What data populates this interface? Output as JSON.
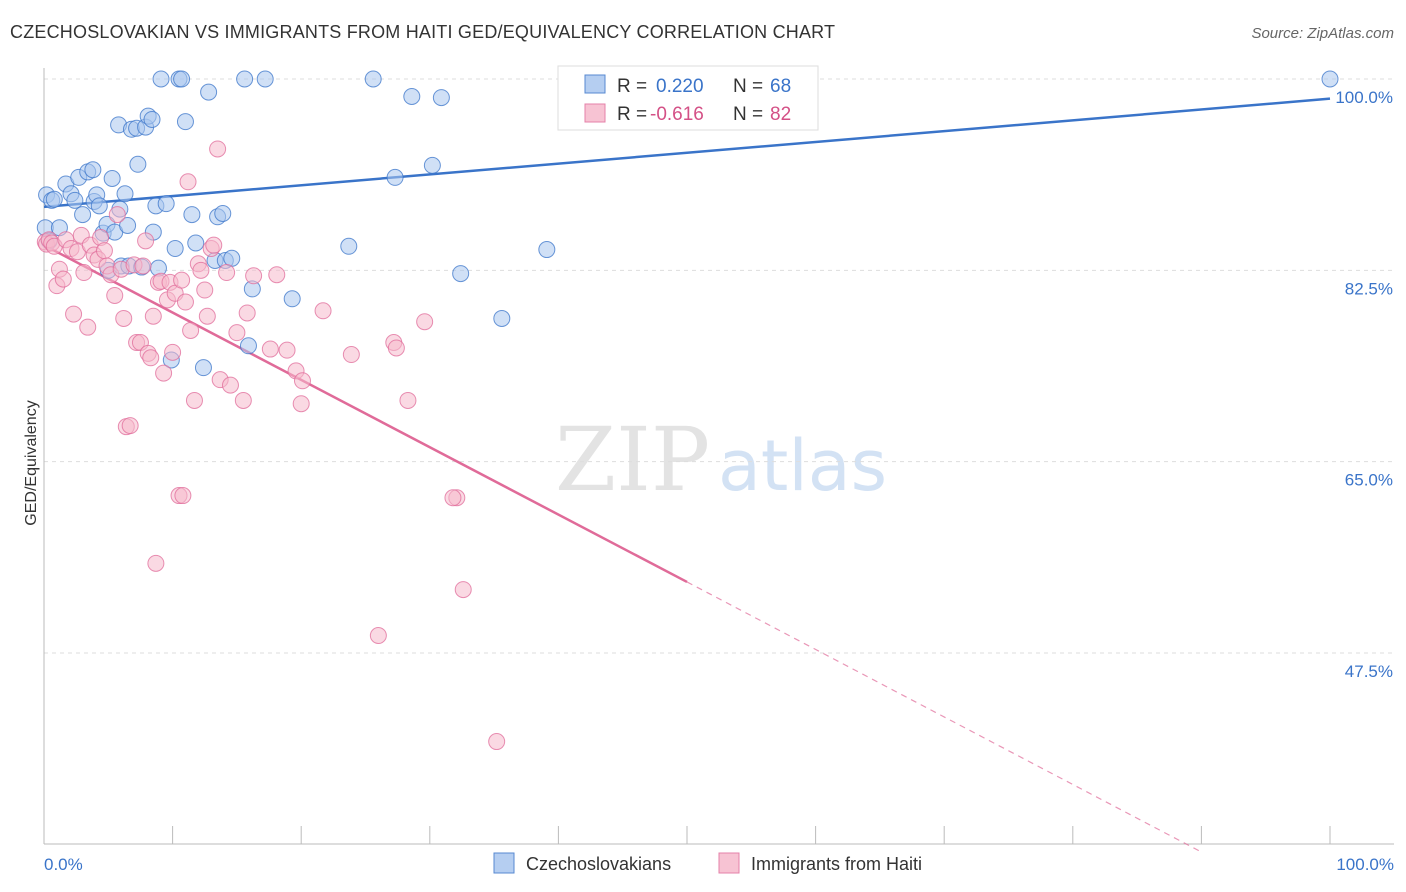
{
  "header": {
    "title": "CZECHOSLOVAKIAN VS IMMIGRANTS FROM HAITI GED/EQUIVALENCY CORRELATION CHART",
    "source": "Source: ZipAtlas.com"
  },
  "watermark": {
    "zip": "ZIP",
    "atlas": "atlas"
  },
  "legend": {
    "r_label": "R =",
    "n_label": "N =",
    "rows": [
      {
        "r": "0.220",
        "n": "68"
      },
      {
        "r": "-0.616",
        "n": "82"
      }
    ]
  },
  "bottom_legend": [
    "Czechoslovakians",
    "Immigrants from Haiti"
  ],
  "colors": {
    "blue": "#3a74c9",
    "blue_fill": "#a9c6ef",
    "pink": "#e06b99",
    "pink_fill": "#f6b9cc"
  },
  "chart_data": {
    "type": "scatter",
    "title": "CZECHOSLOVAKIAN VS IMMIGRANTS FROM HAITI GED/EQUIVALENCY CORRELATION CHART",
    "xlabel": "",
    "ylabel": "GED/Equivalency",
    "xlim": [
      0,
      100
    ],
    "ylim": [
      30,
      101
    ],
    "x_ticks": [
      "0.0%",
      "100.0%"
    ],
    "y_ticks": [
      {
        "value": 100,
        "label": "100.0%"
      },
      {
        "value": 82.5,
        "label": "82.5%"
      },
      {
        "value": 65,
        "label": "65.0%"
      },
      {
        "value": 47.5,
        "label": "47.5%"
      }
    ],
    "grid": true,
    "legend_position": "top-center",
    "series": [
      {
        "name": "Czechoslovakians",
        "r": 0.22,
        "n": 68,
        "trend": {
          "x0": 0,
          "y0": 88.3,
          "x1": 100,
          "y1": 98.2
        },
        "points": [
          [
            0.1,
            86.4
          ],
          [
            0.2,
            89.4
          ],
          [
            0.4,
            85.2
          ],
          [
            0.6,
            88.9
          ],
          [
            0.8,
            89.0
          ],
          [
            1.2,
            86.4
          ],
          [
            1.7,
            90.4
          ],
          [
            2.1,
            89.5
          ],
          [
            2.4,
            88.9
          ],
          [
            2.7,
            91.0
          ],
          [
            3.0,
            87.6
          ],
          [
            3.4,
            91.5
          ],
          [
            3.8,
            91.7
          ],
          [
            3.9,
            88.8
          ],
          [
            4.1,
            89.4
          ],
          [
            4.3,
            88.4
          ],
          [
            4.6,
            85.9
          ],
          [
            4.9,
            86.7
          ],
          [
            5.0,
            82.5
          ],
          [
            5.3,
            90.9
          ],
          [
            5.5,
            86.0
          ],
          [
            5.8,
            95.8
          ],
          [
            5.9,
            88.1
          ],
          [
            6.0,
            82.9
          ],
          [
            6.3,
            89.5
          ],
          [
            6.5,
            86.6
          ],
          [
            6.6,
            82.9
          ],
          [
            6.8,
            95.4
          ],
          [
            7.2,
            95.5
          ],
          [
            7.3,
            92.2
          ],
          [
            7.6,
            82.8
          ],
          [
            7.9,
            95.6
          ],
          [
            8.1,
            96.6
          ],
          [
            8.4,
            96.3
          ],
          [
            8.5,
            86.0
          ],
          [
            8.7,
            88.4
          ],
          [
            8.9,
            82.7
          ],
          [
            9.1,
            100.0
          ],
          [
            9.5,
            88.6
          ],
          [
            9.9,
            74.3
          ],
          [
            10.2,
            84.5
          ],
          [
            10.5,
            100.0
          ],
          [
            10.7,
            100.0
          ],
          [
            11.0,
            96.1
          ],
          [
            11.5,
            87.6
          ],
          [
            11.8,
            85.0
          ],
          [
            12.4,
            73.6
          ],
          [
            12.8,
            98.8
          ],
          [
            13.3,
            83.4
          ],
          [
            13.5,
            87.4
          ],
          [
            13.9,
            87.7
          ],
          [
            14.1,
            83.4
          ],
          [
            14.6,
            83.6
          ],
          [
            15.6,
            100.0
          ],
          [
            15.9,
            75.6
          ],
          [
            16.2,
            80.8
          ],
          [
            17.2,
            100.0
          ],
          [
            19.3,
            79.9
          ],
          [
            23.7,
            84.7
          ],
          [
            25.6,
            100.0
          ],
          [
            27.3,
            91.0
          ],
          [
            28.6,
            98.4
          ],
          [
            30.2,
            92.1
          ],
          [
            30.9,
            98.3
          ],
          [
            32.4,
            82.2
          ],
          [
            35.6,
            78.1
          ],
          [
            39.1,
            84.4
          ],
          [
            100.0,
            100.0
          ]
        ]
      },
      {
        "name": "Immigrants from Haiti",
        "r": -0.616,
        "n": 82,
        "trend": {
          "x0": 0,
          "y0": 84.8,
          "x1": 50,
          "y1": 54.0,
          "dash_x1": 90,
          "dash_y1": 29.3
        },
        "points": [
          [
            0.1,
            85.1
          ],
          [
            0.2,
            84.9
          ],
          [
            0.4,
            85.3
          ],
          [
            0.6,
            85.0
          ],
          [
            0.8,
            84.7
          ],
          [
            1.0,
            81.1
          ],
          [
            1.2,
            82.6
          ],
          [
            1.5,
            81.7
          ],
          [
            1.7,
            85.3
          ],
          [
            2.1,
            84.5
          ],
          [
            2.3,
            78.5
          ],
          [
            2.6,
            84.2
          ],
          [
            2.9,
            85.7
          ],
          [
            3.1,
            82.3
          ],
          [
            3.4,
            77.3
          ],
          [
            3.6,
            84.8
          ],
          [
            3.9,
            83.9
          ],
          [
            4.2,
            83.5
          ],
          [
            4.4,
            85.5
          ],
          [
            4.7,
            84.3
          ],
          [
            4.9,
            82.9
          ],
          [
            5.2,
            82.1
          ],
          [
            5.5,
            80.2
          ],
          [
            5.7,
            87.6
          ],
          [
            6.0,
            82.6
          ],
          [
            6.2,
            78.1
          ],
          [
            6.4,
            68.2
          ],
          [
            6.7,
            68.3
          ],
          [
            7.0,
            83.0
          ],
          [
            7.2,
            75.9
          ],
          [
            7.5,
            75.9
          ],
          [
            7.7,
            82.9
          ],
          [
            7.9,
            85.2
          ],
          [
            8.1,
            74.9
          ],
          [
            8.3,
            74.5
          ],
          [
            8.5,
            78.3
          ],
          [
            8.7,
            55.7
          ],
          [
            8.9,
            81.4
          ],
          [
            9.1,
            81.5
          ],
          [
            9.3,
            73.1
          ],
          [
            9.6,
            79.8
          ],
          [
            9.8,
            81.4
          ],
          [
            10.0,
            75.0
          ],
          [
            10.2,
            80.4
          ],
          [
            10.5,
            61.9
          ],
          [
            10.7,
            81.6
          ],
          [
            11.0,
            79.6
          ],
          [
            11.2,
            90.6
          ],
          [
            11.4,
            77.0
          ],
          [
            11.7,
            70.6
          ],
          [
            12.0,
            83.1
          ],
          [
            12.2,
            82.5
          ],
          [
            12.5,
            80.7
          ],
          [
            12.7,
            78.3
          ],
          [
            13.0,
            84.5
          ],
          [
            13.2,
            84.8
          ],
          [
            13.5,
            93.6
          ],
          [
            13.7,
            72.5
          ],
          [
            14.2,
            82.3
          ],
          [
            14.5,
            72.0
          ],
          [
            15.0,
            76.8
          ],
          [
            15.5,
            70.6
          ],
          [
            15.8,
            78.6
          ],
          [
            16.3,
            82.0
          ],
          [
            17.6,
            75.3
          ],
          [
            18.1,
            82.1
          ],
          [
            18.9,
            75.2
          ],
          [
            19.6,
            73.3
          ],
          [
            20.0,
            70.3
          ],
          [
            20.1,
            72.4
          ],
          [
            21.7,
            78.8
          ],
          [
            23.9,
            74.8
          ],
          [
            26.0,
            49.1
          ],
          [
            27.2,
            75.9
          ],
          [
            27.4,
            75.4
          ],
          [
            28.3,
            70.6
          ],
          [
            29.6,
            77.8
          ],
          [
            32.1,
            61.7
          ],
          [
            32.6,
            53.3
          ],
          [
            35.2,
            39.4
          ],
          [
            31.8,
            61.7
          ],
          [
            10.8,
            61.9
          ]
        ]
      }
    ]
  }
}
